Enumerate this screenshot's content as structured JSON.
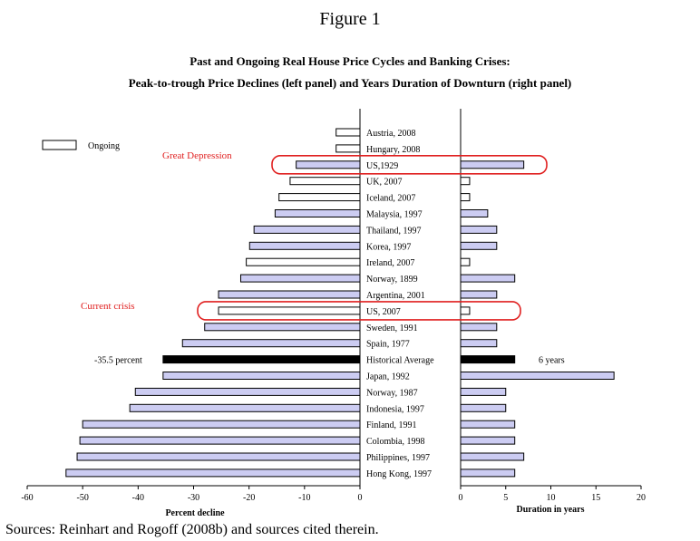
{
  "figure_label": "Figure 1",
  "title_line1": "Past and Ongoing Real House Price Cycles and Banking Crises:",
  "title_line2": "Peak-to-trough Price Declines (left panel) and Years Duration of Downturn (right panel)",
  "sources": "Sources: Reinhart and Rogoff (2008b) and sources cited therein.",
  "legend_ongoing": "Ongoing",
  "annotations": {
    "great_depression": "Great Depression",
    "current_crisis": "Current crisis",
    "avg_decline_label": "-35.5 percent",
    "avg_duration_label": "6 years"
  },
  "colors": {
    "completed_fill": "#ccccf2",
    "ongoing_fill": "#ffffff",
    "average_fill": "#000000",
    "highlight": "#e02020"
  },
  "chart_data": [
    {
      "type": "bar",
      "orientation": "horizontal",
      "title": "",
      "xlabel": "Percent decline",
      "xlim": [
        -60,
        0
      ],
      "xticks": [
        "-60",
        "-50",
        "-40",
        "-30",
        "-20",
        "-10",
        "0"
      ],
      "categories": [
        "Austria, 2008",
        "Hungary, 2008",
        "US,1929",
        "UK, 2007",
        "Iceland, 2007",
        "Malaysia, 1997",
        "Thailand, 1997",
        "Korea, 1997",
        "Ireland, 2007",
        "Norway, 1899",
        "Argentina, 2001",
        "US, 2007",
        "Sweden, 1991",
        "Spain, 1977",
        "Historical Average",
        "Japan, 1992",
        "Norway, 1987",
        "Indonesia, 1997",
        "Finland, 1991",
        "Colombia, 1998",
        "Philippines, 1997",
        "Hong Kong, 1997"
      ],
      "values": [
        -4.3,
        -4.3,
        -11.5,
        -12.6,
        -14.6,
        -15.3,
        -19.1,
        -19.9,
        -20.5,
        -21.5,
        -25.5,
        -25.5,
        -28.0,
        -32.0,
        -35.5,
        -35.5,
        -40.5,
        -41.5,
        -50.0,
        -50.5,
        -51.0,
        -53.0
      ],
      "ongoing": [
        true,
        true,
        false,
        true,
        true,
        false,
        false,
        false,
        true,
        false,
        false,
        true,
        false,
        false,
        false,
        false,
        false,
        false,
        false,
        false,
        false,
        false
      ]
    },
    {
      "type": "bar",
      "orientation": "horizontal",
      "title": "",
      "xlabel": "Duration in years",
      "xlim": [
        0,
        20
      ],
      "xticks": [
        "0",
        "5",
        "10",
        "15",
        "20"
      ],
      "categories": [
        "Austria, 2008",
        "Hungary, 2008",
        "US,1929",
        "UK, 2007",
        "Iceland, 2007",
        "Malaysia, 1997",
        "Thailand, 1997",
        "Korea, 1997",
        "Ireland, 2007",
        "Norway, 1899",
        "Argentina, 2001",
        "US, 2007",
        "Sweden, 1991",
        "Spain, 1977",
        "Historical Average",
        "Japan, 1992",
        "Norway, 1987",
        "Indonesia, 1997",
        "Finland, 1991",
        "Colombia, 1998",
        "Philippines, 1997",
        "Hong Kong, 1997"
      ],
      "values": [
        0,
        0,
        7,
        1,
        1,
        3,
        4,
        4,
        1,
        6,
        4,
        1,
        4,
        4,
        6,
        17,
        5,
        5,
        6,
        6,
        7,
        6
      ],
      "ongoing": [
        true,
        true,
        false,
        true,
        true,
        false,
        false,
        false,
        true,
        false,
        false,
        true,
        false,
        false,
        false,
        false,
        false,
        false,
        false,
        false,
        false,
        false
      ]
    }
  ]
}
